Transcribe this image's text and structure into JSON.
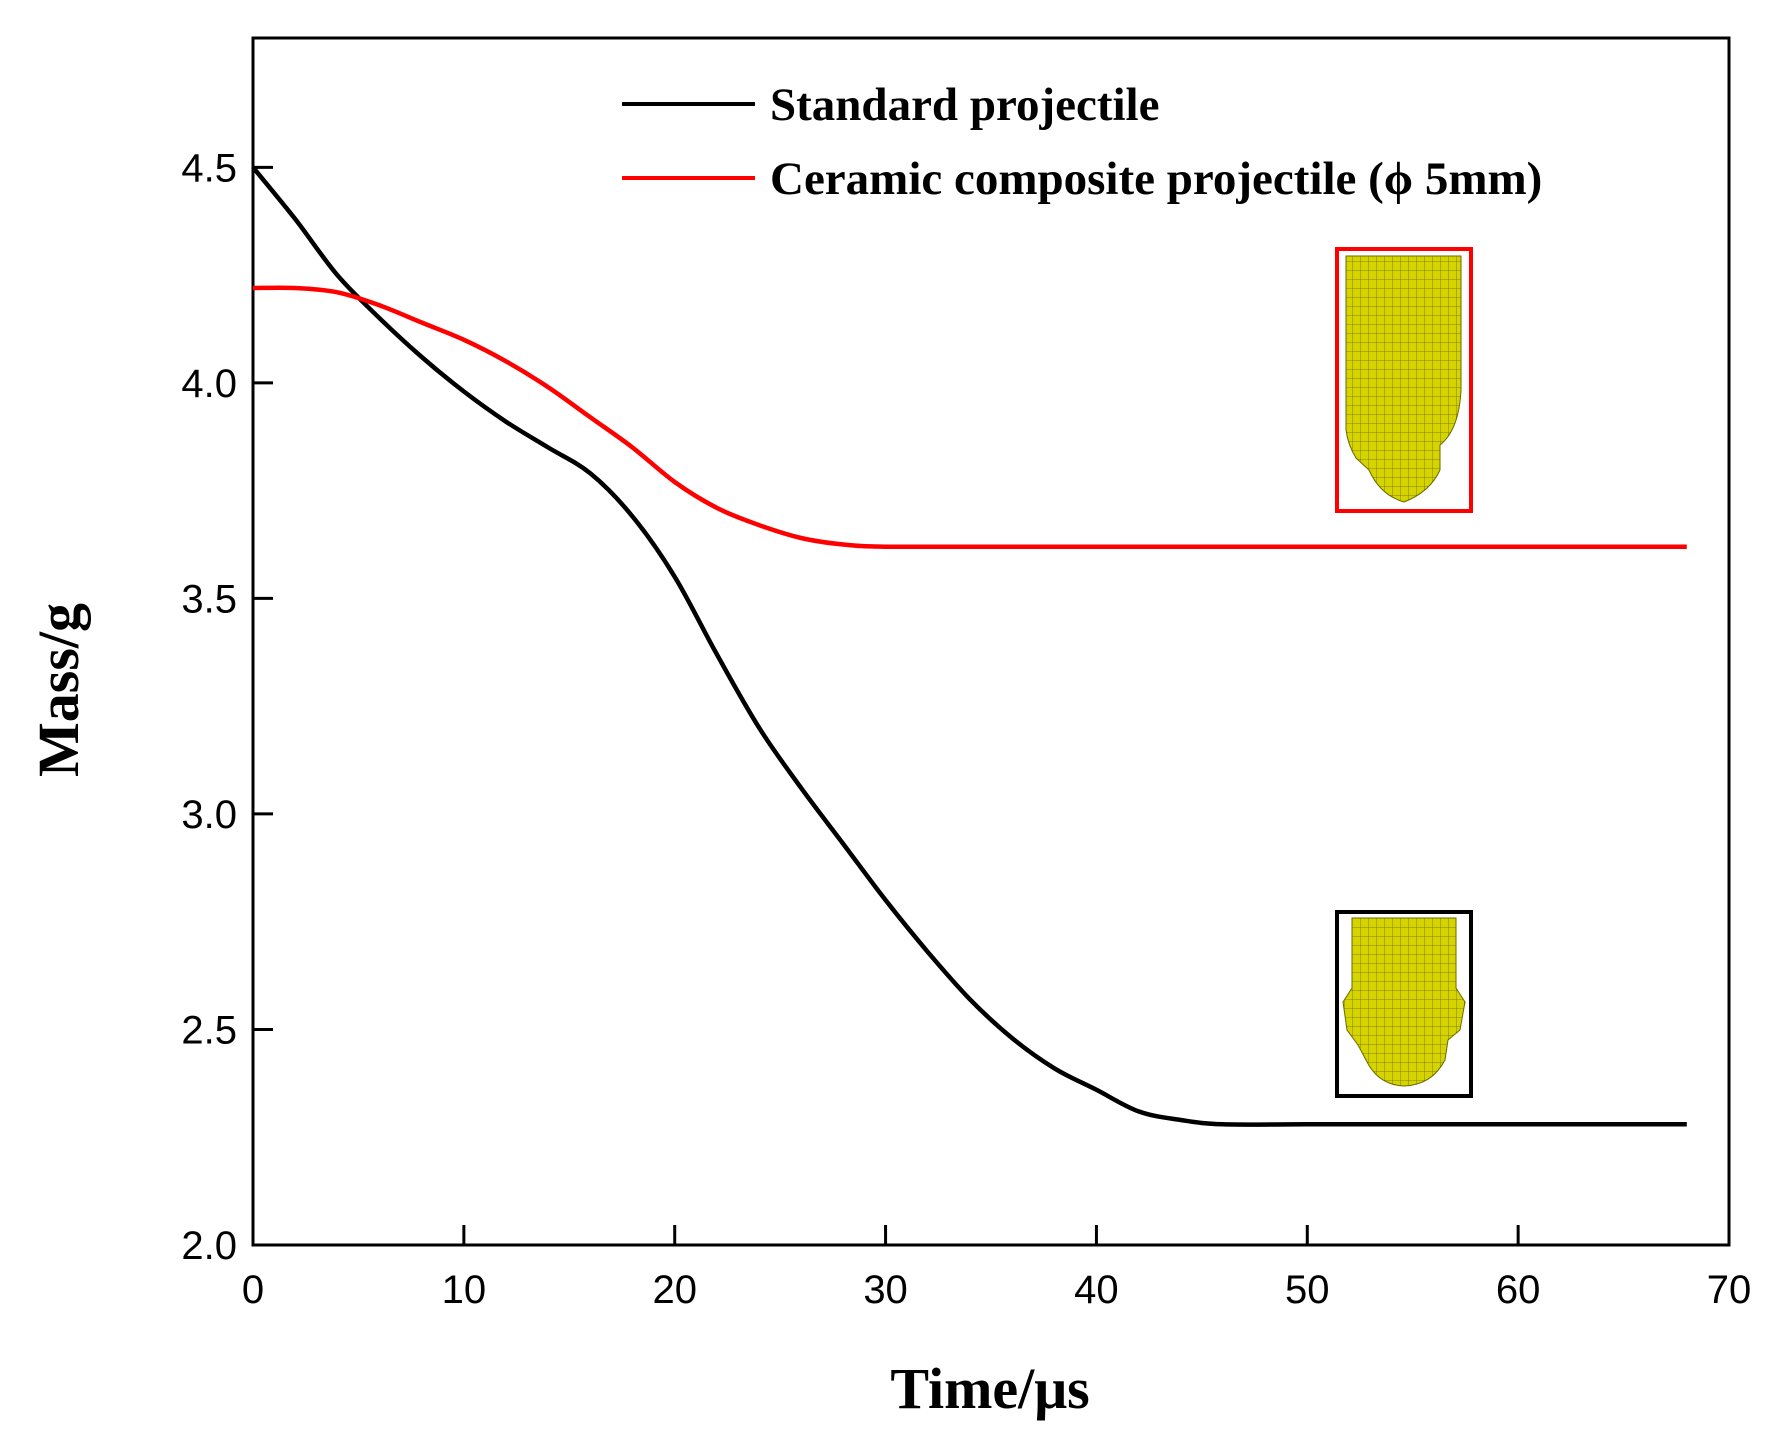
{
  "chart_data": {
    "type": "line",
    "title": "",
    "xlabel": "Time/μs",
    "ylabel": "Mass/g",
    "xlim": [
      0,
      70
    ],
    "ylim": [
      2.0,
      4.8
    ],
    "xticks": [
      0,
      10,
      20,
      30,
      40,
      50,
      60,
      70
    ],
    "xtick_labels": [
      "0",
      "10",
      "20",
      "30",
      "40",
      "50",
      "60",
      "70"
    ],
    "yticks": [
      2.0,
      2.5,
      3.0,
      3.5,
      4.0,
      4.5
    ],
    "ytick_labels": [
      "2.0",
      "2.5",
      "3.0",
      "3.5",
      "4.0",
      "4.5"
    ],
    "grid": false,
    "legend_position": "top-right",
    "series": [
      {
        "name": "Standard projectile",
        "color": "#000000",
        "x": [
          0,
          2,
          4,
          6,
          8,
          10,
          12,
          14,
          16,
          18,
          20,
          22,
          24,
          26,
          28,
          30,
          32,
          34,
          36,
          38,
          40,
          42,
          44,
          46,
          50,
          55,
          60,
          65,
          68
        ],
        "y": [
          4.5,
          4.38,
          4.25,
          4.15,
          4.06,
          3.98,
          3.91,
          3.85,
          3.79,
          3.69,
          3.55,
          3.37,
          3.2,
          3.06,
          2.93,
          2.8,
          2.68,
          2.57,
          2.48,
          2.41,
          2.36,
          2.31,
          2.29,
          2.28,
          2.28,
          2.28,
          2.28,
          2.28,
          2.28
        ]
      },
      {
        "name": "Ceramic composite projectile (ϕ 5mm)",
        "color": "#ff0000",
        "x": [
          0,
          2,
          4,
          6,
          8,
          10,
          12,
          14,
          16,
          18,
          20,
          22,
          24,
          26,
          28,
          30,
          35,
          40,
          50,
          60,
          68
        ],
        "y": [
          4.22,
          4.22,
          4.21,
          4.18,
          4.14,
          4.1,
          4.05,
          3.99,
          3.92,
          3.85,
          3.77,
          3.71,
          3.67,
          3.64,
          3.625,
          3.62,
          3.62,
          3.62,
          3.62,
          3.62,
          3.62
        ]
      }
    ],
    "annotations": [
      {
        "type": "inset-image",
        "depicts": "deformed ceramic composite projectile mesh",
        "frame_color": "#ff0000"
      },
      {
        "type": "inset-image",
        "depicts": "deformed standard projectile mesh",
        "frame_color": "#000000"
      }
    ]
  },
  "colors": {
    "axis": "#000000",
    "mesh_fill": "#d6d400",
    "mesh_line": "#6a6a00"
  }
}
